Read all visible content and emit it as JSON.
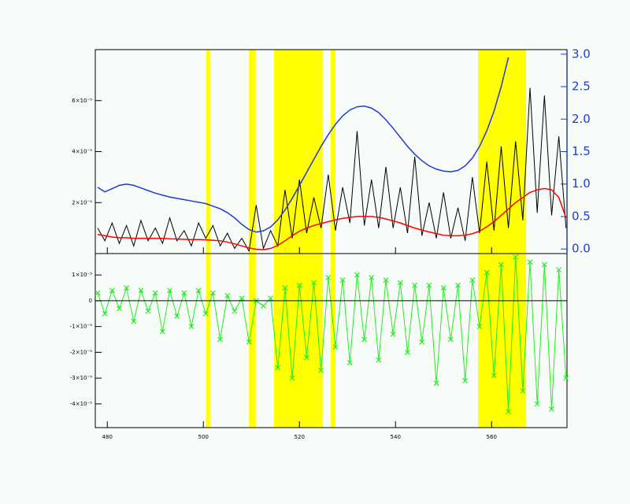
{
  "chart_data": [
    {
      "type": "line",
      "x": [
        478,
        479.5,
        481,
        482.5,
        484,
        485.5,
        487,
        488.5,
        490,
        491.5,
        493,
        494.5,
        496,
        497.5,
        499,
        500.5,
        502,
        503.5,
        505,
        506.5,
        508,
        509.5,
        511,
        512.5,
        514,
        515.5,
        517,
        518.5,
        520,
        521.5,
        523,
        524.5,
        526,
        527.5,
        529,
        530.5,
        532,
        533.5,
        535,
        536.5,
        538,
        539.5,
        541,
        542.5,
        544,
        545.5,
        547,
        548.5,
        550,
        551.5,
        553,
        554.5,
        556,
        557.5,
        559,
        560.5,
        562,
        563.5,
        565,
        566.5,
        568,
        569.5,
        571,
        572.5,
        574,
        575.5
      ],
      "masked_regions": [
        [
          500.6,
          501.4
        ],
        [
          509.5,
          510.9
        ],
        [
          514.7,
          524.9
        ],
        [
          526.5,
          527.5
        ],
        [
          557.2,
          567.2
        ]
      ],
      "mask_color": "#ffff00",
      "ylim": [
        0,
        8e-05
      ],
      "yticks": [
        {
          "value": 2e-05,
          "label": "2×10⁻⁵"
        },
        {
          "value": 4e-05,
          "label": "4×10⁻⁵"
        },
        {
          "value": 6e-05,
          "label": "6×10⁻⁵"
        }
      ],
      "y2lim": [
        -0.07,
        3.07
      ],
      "y2ticks": [
        {
          "value": 0,
          "label": "0.0"
        },
        0.5,
        {
          "value": 1,
          "label": "1.0"
        },
        1.5,
        {
          "value": 2,
          "label": "2.0"
        },
        2.5,
        {
          "value": 3,
          "label": "3.0"
        }
      ],
      "y2color": "#1e3cd2",
      "series": [
        {
          "color": "#000000",
          "values": [
            1e-05,
            5e-06,
            1.2e-05,
            4e-06,
            1.1e-05,
            3e-06,
            1.3e-05,
            5e-06,
            1e-05,
            4e-06,
            1.4e-05,
            5e-06,
            9e-06,
            3e-06,
            1.2e-05,
            6e-06,
            1.1e-05,
            3e-06,
            8e-06,
            2e-06,
            6e-06,
            1e-06,
            1.9e-05,
            2e-06,
            9e-06,
            3e-06,
            2.5e-05,
            6e-06,
            2.9e-05,
            8e-06,
            2.2e-05,
            1e-05,
            3.1e-05,
            9e-06,
            2.6e-05,
            1.2e-05,
            4.8e-05,
            1.1e-05,
            2.9e-05,
            1e-05,
            3.4e-05,
            1e-05,
            2.6e-05,
            8e-06,
            3.8e-05,
            7e-06,
            2e-05,
            6e-06,
            2.4e-05,
            6e-06,
            1.8e-05,
            5e-06,
            3e-05,
            8e-06,
            3.6e-05,
            9e-06,
            4.2e-05,
            1e-05,
            4.4e-05,
            1.3e-05,
            6.5e-05,
            1.6e-05,
            6.2e-05,
            1.5e-05,
            4.6e-05,
            1e-05
          ]
        },
        {
          "color": "#ff0000",
          "values": [
            7.5e-06,
            7e-06,
            6.5e-06,
            6.2e-06,
            6.2e-06,
            6e-06,
            6e-06,
            6e-06,
            6e-06,
            6e-06,
            5.8e-06,
            5.7e-06,
            5.6e-06,
            5.5e-06,
            5.5e-06,
            5.4e-06,
            5.2e-06,
            5e-06,
            4.5e-06,
            3.8e-06,
            3e-06,
            2.2e-06,
            1.7e-06,
            1.5e-06,
            2e-06,
            3.2e-06,
            5e-06,
            7e-06,
            8.8e-06,
            1e-05,
            1.1e-05,
            1.18e-05,
            1.25e-05,
            1.32e-05,
            1.38e-05,
            1.42e-05,
            1.45e-05,
            1.46e-05,
            1.45e-05,
            1.42e-05,
            1.36e-05,
            1.28e-05,
            1.2e-05,
            1.1e-05,
            1e-05,
            9.2e-06,
            8.5e-06,
            7.8e-06,
            7.2e-06,
            7e-06,
            7e-06,
            7.2e-06,
            7.8e-06,
            8.8e-06,
            1.05e-05,
            1.25e-05,
            1.5e-05,
            1.75e-05,
            2e-05,
            2.2e-05,
            2.4e-05,
            2.5e-05,
            2.55e-05,
            2.5e-05,
            2.2e-05,
            1.4e-05
          ]
        },
        {
          "color": "#1e3cd2",
          "axis": "y2",
          "values": [
            0.95,
            0.88,
            0.93,
            0.98,
            1.0,
            0.98,
            0.94,
            0.9,
            0.86,
            0.83,
            0.8,
            0.78,
            0.76,
            0.74,
            0.72,
            0.7,
            0.66,
            0.62,
            0.56,
            0.48,
            0.38,
            0.3,
            0.26,
            0.28,
            0.34,
            0.45,
            0.6,
            0.78,
            0.98,
            1.18,
            1.38,
            1.58,
            1.76,
            1.92,
            2.05,
            2.14,
            2.19,
            2.2,
            2.17,
            2.1,
            1.99,
            1.86,
            1.72,
            1.58,
            1.46,
            1.36,
            1.28,
            1.23,
            1.2,
            1.19,
            1.21,
            1.28,
            1.4,
            1.58,
            1.82,
            2.12,
            2.5,
            2.95,
            null,
            null,
            null,
            null,
            null,
            null,
            null,
            null
          ]
        }
      ]
    },
    {
      "type": "scatter",
      "xlim": [
        477.5,
        575.7
      ],
      "xticks": [
        480,
        500,
        520,
        540,
        560
      ],
      "ylim": [
        -4.92e-05,
        1.83e-05
      ],
      "yticks": [
        {
          "value": 1e-05,
          "label": "1×10⁻⁵"
        },
        0,
        {
          "value": -1e-05,
          "label": "-1×10⁻⁵"
        },
        {
          "value": -2e-05,
          "label": "-2×10⁻⁵"
        },
        {
          "value": -3e-05,
          "label": "-3×10⁻⁵"
        },
        {
          "value": -4e-05,
          "label": "-4×10⁻⁵"
        }
      ],
      "series": [
        {
          "color": "#22ee22",
          "values": [
            3e-06,
            -5e-06,
            4e-06,
            -3e-06,
            5e-06,
            -8e-06,
            4e-06,
            -4e-06,
            3e-06,
            -1.2e-05,
            4e-06,
            -6e-06,
            3e-06,
            -1e-05,
            4e-06,
            -5e-06,
            3e-06,
            -1.5e-05,
            2e-06,
            -4e-06,
            1e-06,
            -1.6e-05,
            0,
            -2e-06,
            1e-06,
            -2.6e-05,
            5e-06,
            -3e-05,
            6e-06,
            -2.2e-05,
            7e-06,
            -2.7e-05,
            9e-06,
            -1.8e-05,
            8e-06,
            -2.4e-05,
            1e-05,
            -1.5e-05,
            9e-06,
            -2.3e-05,
            8e-06,
            -1.3e-05,
            7e-06,
            -2e-05,
            6e-06,
            -1.6e-05,
            6e-06,
            -3.2e-05,
            5e-06,
            -1.5e-05,
            6e-06,
            -3.1e-05,
            8e-06,
            -1e-05,
            1.1e-05,
            -2.9e-05,
            1.4e-05,
            -4.3e-05,
            1.7e-05,
            -3.5e-05,
            1.5e-05,
            -4e-05,
            1.4e-05,
            -4.2e-05,
            1.2e-05,
            -3e-05
          ]
        }
      ]
    }
  ]
}
